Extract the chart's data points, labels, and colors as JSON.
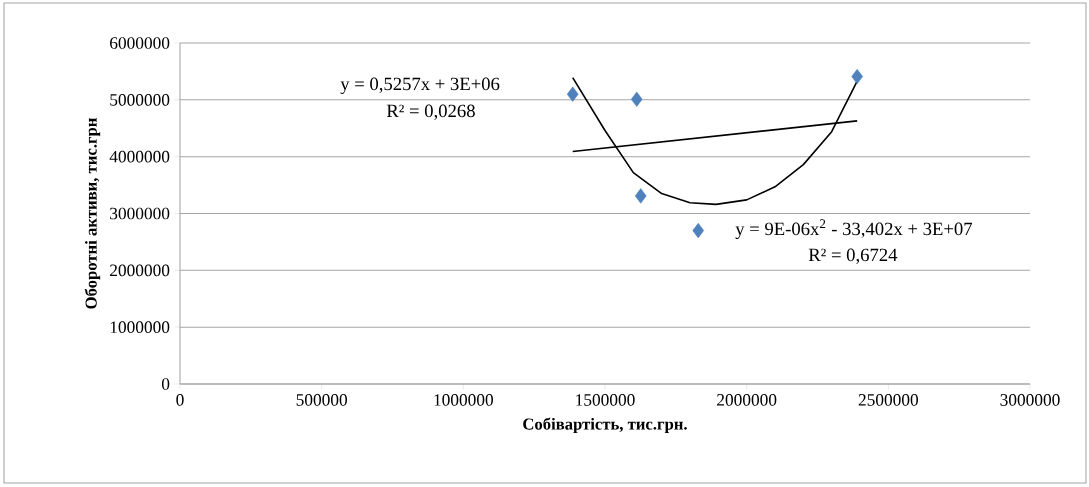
{
  "chart_data": {
    "type": "scatter",
    "xlabel": "Собівартість, тис.грн.",
    "ylabel": "Оборотні активи, тис.грн",
    "xlim": [
      0,
      3000000
    ],
    "ylim": [
      0,
      6000000
    ],
    "xticks": [
      0,
      500000,
      1000000,
      1500000,
      2000000,
      2500000,
      3000000
    ],
    "yticks": [
      0,
      1000000,
      2000000,
      3000000,
      4000000,
      5000000,
      6000000
    ],
    "grid": "y",
    "marker": "diamond",
    "series": [
      {
        "color": "#4f81bd",
        "x": [
          1386000,
          1612000,
          1626000,
          1829000,
          2390000
        ],
        "values": [
          5100000,
          5010000,
          3310000,
          2700000,
          5410000
        ]
      },
      {
        "type": "line",
        "color": "#000000",
        "marker": "none",
        "x": [
          1386000,
          2390000
        ],
        "values": [
          4090000,
          4630000
        ]
      },
      {
        "type": "line",
        "color": "#000000",
        "marker": "none",
        "x": [
          1386000,
          1500000,
          1600000,
          1700000,
          1800000,
          1892000,
          2000000,
          2100000,
          2200000,
          2300000,
          2390000
        ],
        "values": [
          5390000,
          4460000,
          3720000,
          3350000,
          3190000,
          3160000,
          3240000,
          3470000,
          3860000,
          4440000,
          5330000
        ]
      }
    ],
    "annotations": [
      "y = 0,5257x + 3E+06",
      "R² = 0,0268",
      "y = 9E-06x$^{2}$ - 33,402x + 3E+07",
      "R² = 0,6724"
    ]
  }
}
